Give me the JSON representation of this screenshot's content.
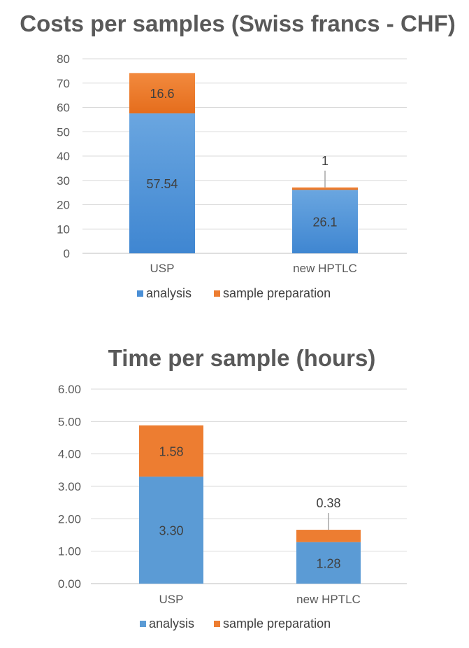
{
  "chart_data": [
    {
      "type": "bar",
      "stacked": true,
      "title": "Costs per samples (Swiss francs - CHF)",
      "categories": [
        "USP",
        "new HPTLC"
      ],
      "series": [
        {
          "name": "analysis",
          "values": [
            57.54,
            26.1
          ],
          "labels": [
            "57.54",
            "26.1"
          ],
          "color": "#4a8fd6"
        },
        {
          "name": "sample preparation",
          "values": [
            16.6,
            1
          ],
          "labels": [
            "16.6",
            "1"
          ],
          "color": "#ed7d31"
        }
      ],
      "ylim": [
        0,
        80
      ],
      "yticks": [
        "0",
        "10",
        "20",
        "30",
        "40",
        "50",
        "60",
        "70",
        "80"
      ],
      "grid": true,
      "legend": "bottom"
    },
    {
      "type": "bar",
      "stacked": true,
      "title": "Time per sample (hours)",
      "categories": [
        "USP",
        "new HPTLC"
      ],
      "series": [
        {
          "name": "analysis",
          "values": [
            3.3,
            1.28
          ],
          "labels": [
            "3.30",
            "1.28"
          ],
          "color": "#5b9bd5"
        },
        {
          "name": "sample preparation",
          "values": [
            1.58,
            0.38
          ],
          "labels": [
            "1.58",
            "0.38"
          ],
          "color": "#ed7d31"
        }
      ],
      "ylim": [
        0,
        6
      ],
      "yticks": [
        "0.00",
        "1.00",
        "2.00",
        "3.00",
        "4.00",
        "5.00",
        "6.00"
      ],
      "grid": true,
      "legend": "bottom"
    }
  ]
}
